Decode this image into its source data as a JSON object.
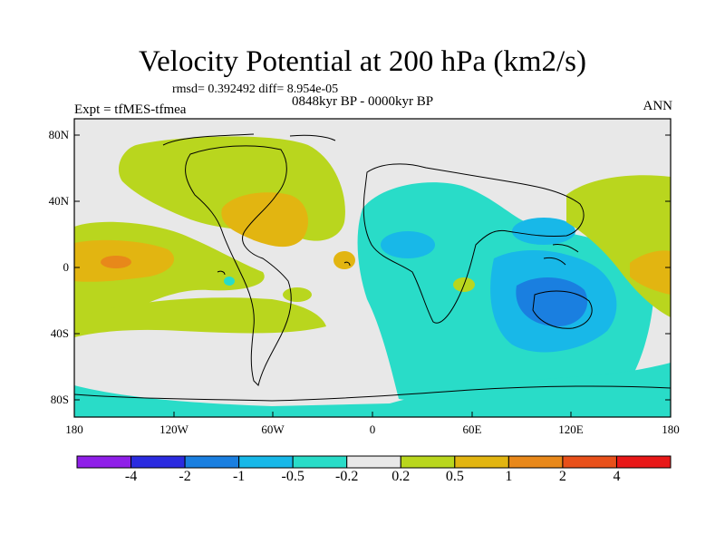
{
  "title": "Velocity Potential at 200 hPa (km2/s)",
  "stats": "rmsd= 0.392492 diff= 8.954e-05",
  "experiment": "Expt = tfMES-tfmea",
  "period": "0848kyr BP - 0000kyr BP",
  "season": "ANN",
  "lat_labels": [
    "80N",
    "40N",
    "0",
    "40S",
    "80S"
  ],
  "lon_labels": [
    "180",
    "120W",
    "60W",
    "0",
    "60E",
    "120E",
    "180"
  ],
  "colorbar": {
    "colors": [
      "#8f1fe8",
      "#2b2be0",
      "#1a7fe0",
      "#18b8e8",
      "#29dcc8",
      "#e8e8e8",
      "#b9d61e",
      "#e2b511",
      "#e8881a",
      "#e8501a",
      "#e81818"
    ],
    "labels": [
      "-4",
      "-2",
      "-1",
      "-0.5",
      "-0.2",
      "0.2",
      "0.5",
      "1",
      "2",
      "4"
    ]
  }
}
